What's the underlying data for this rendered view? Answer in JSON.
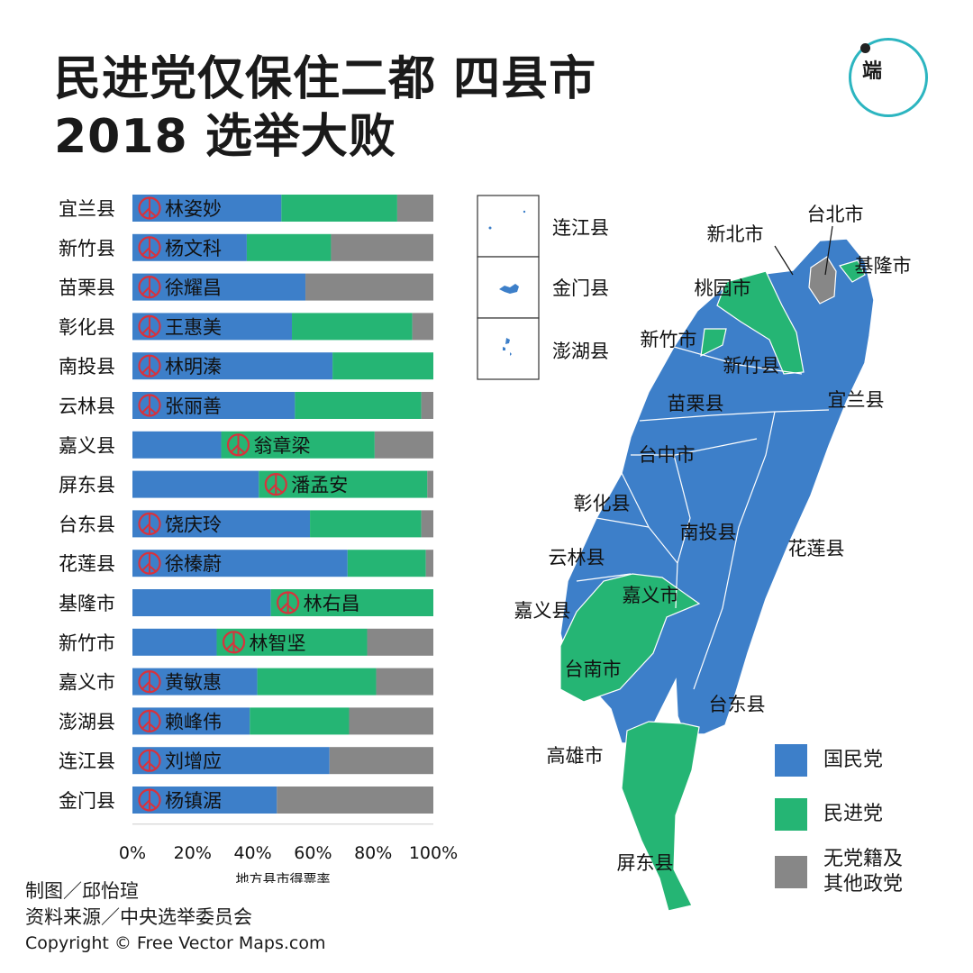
{
  "title": {
    "line1": "民进党仅保住二都  四县市",
    "line2": "2018 选举大败"
  },
  "logo": {
    "label": "端"
  },
  "colors": {
    "kmt": "#3d7fc9",
    "dpp": "#25b574",
    "other": "#878787",
    "winner_mark": "#d8323c"
  },
  "chart_data": {
    "type": "bar",
    "orientation": "horizontal",
    "stacked": true,
    "xlabel": "地方县市得票率",
    "xlim": [
      0,
      100
    ],
    "xticks": [
      "0%",
      "20%",
      "40%",
      "60%",
      "80%",
      "100%"
    ],
    "categories": [
      "宜兰县",
      "新竹县",
      "苗栗县",
      "彰化县",
      "南投县",
      "云林县",
      "嘉义县",
      "屏东县",
      "台东县",
      "花莲县",
      "基隆市",
      "新竹市",
      "嘉义市",
      "澎湖县",
      "连江县",
      "金门县"
    ],
    "series": [
      {
        "name": "国民党",
        "values": [
          49.5,
          38,
          57.5,
          53,
          66.5,
          54,
          29.5,
          42,
          59,
          71.5,
          46,
          28,
          41.5,
          39,
          65.5,
          48
        ]
      },
      {
        "name": "民进党",
        "values": [
          38.5,
          28,
          0,
          40,
          33.5,
          42,
          51,
          56,
          37,
          26,
          54,
          50,
          39.5,
          33,
          0,
          0
        ]
      },
      {
        "name": "无党籍及其他政党",
        "values": [
          12,
          34,
          42.5,
          7,
          0,
          4,
          19.5,
          2,
          4,
          2.5,
          0,
          22,
          19,
          28,
          34.5,
          52
        ]
      }
    ],
    "winners": [
      {
        "name": "林姿妙",
        "party": "国民党"
      },
      {
        "name": "杨文科",
        "party": "国民党"
      },
      {
        "name": "徐耀昌",
        "party": "国民党"
      },
      {
        "name": "王惠美",
        "party": "国民党"
      },
      {
        "name": "林明溱",
        "party": "国民党"
      },
      {
        "name": "张丽善",
        "party": "国民党"
      },
      {
        "name": "翁章梁",
        "party": "民进党"
      },
      {
        "name": "潘孟安",
        "party": "民进党"
      },
      {
        "name": "饶庆玲",
        "party": "国民党"
      },
      {
        "name": "徐榛蔚",
        "party": "国民党"
      },
      {
        "name": "林右昌",
        "party": "民进党"
      },
      {
        "name": "林智坚",
        "party": "民进党"
      },
      {
        "name": "黄敏惠",
        "party": "国民党"
      },
      {
        "name": "赖峰伟",
        "party": "国民党"
      },
      {
        "name": "刘增应",
        "party": "国民党"
      },
      {
        "name": "杨镇涺",
        "party": "国民党"
      }
    ]
  },
  "map": {
    "insets": [
      "连江县",
      "金门县",
      "澎湖县"
    ],
    "labels": [
      "台北市",
      "新北市",
      "基隆市",
      "桃园市",
      "新竹市",
      "新竹县",
      "苗栗县",
      "宜兰县",
      "台中市",
      "彰化县",
      "南投县",
      "云林县",
      "花莲县",
      "嘉义县",
      "嘉义市",
      "台南市",
      "台东县",
      "高雄市",
      "屏东县"
    ],
    "legend": [
      {
        "label": "国民党",
        "color": "#3d7fc9"
      },
      {
        "label": "民进党",
        "color": "#25b574"
      },
      {
        "label1": "无党籍及",
        "label2": "其他政党",
        "color": "#878787"
      }
    ]
  },
  "credits": {
    "author": "制图／邱怡瑄",
    "source": "资料来源／中央选举委员会",
    "copyright": "Copyright © Free Vector Maps.com"
  }
}
